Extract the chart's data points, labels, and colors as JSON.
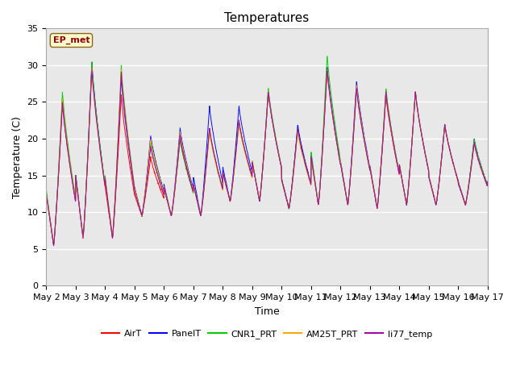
{
  "title": "Temperatures",
  "xlabel": "Time",
  "ylabel": "Temperature (C)",
  "ylim": [
    0,
    35
  ],
  "xlim": [
    0,
    15
  ],
  "line_colors": {
    "AirT": "#FF0000",
    "PanelT": "#0000FF",
    "CNR1_PRT": "#00CC00",
    "AM25T_PRT": "#FFA500",
    "li77_temp": "#AA00AA"
  },
  "ep_met_label": "EP_met",
  "ep_met_color": "#8B0000",
  "background_color": "#E0E0E0",
  "plot_bg_color": "#E8E8E8",
  "grid_color": "#FFFFFF",
  "title_fontsize": 11,
  "axis_label_fontsize": 9,
  "tick_fontsize": 8,
  "n_days": 15,
  "start_day": 2,
  "daily_min": [
    5.5,
    6.5,
    6.5,
    9.5,
    9.5,
    9.5,
    11.5,
    11.5,
    10.5,
    11.0,
    11.0,
    10.5,
    11.0,
    11.0,
    11.0
  ],
  "daily_max": {
    "AirT": [
      25.0,
      30.0,
      26.0,
      17.5,
      20.0,
      21.5,
      22.5,
      26.5,
      21.5,
      29.5,
      27.0,
      26.0,
      26.5,
      22.0,
      19.5
    ],
    "PanelT": [
      25.5,
      30.5,
      28.5,
      20.5,
      21.5,
      24.5,
      24.5,
      26.5,
      22.0,
      30.0,
      28.0,
      26.5,
      26.5,
      22.0,
      20.0
    ],
    "CNR1_PRT": [
      26.5,
      30.5,
      30.0,
      19.5,
      20.0,
      21.5,
      22.5,
      27.0,
      21.5,
      31.5,
      27.0,
      27.0,
      26.5,
      22.0,
      20.0
    ],
    "AM25T_PRT": [
      25.5,
      29.5,
      29.5,
      20.0,
      21.0,
      21.0,
      22.0,
      26.5,
      21.0,
      29.5,
      27.5,
      26.5,
      26.5,
      22.0,
      19.5
    ],
    "li77_temp": [
      25.0,
      29.5,
      29.0,
      19.0,
      20.5,
      21.5,
      22.5,
      26.5,
      21.5,
      29.5,
      27.0,
      26.5,
      26.5,
      22.0,
      19.5
    ]
  },
  "peak_hour": 0.55,
  "trough_hour": 0.25,
  "sharpness": 3.5,
  "figsize": [
    6.4,
    4.8
  ],
  "dpi": 100
}
